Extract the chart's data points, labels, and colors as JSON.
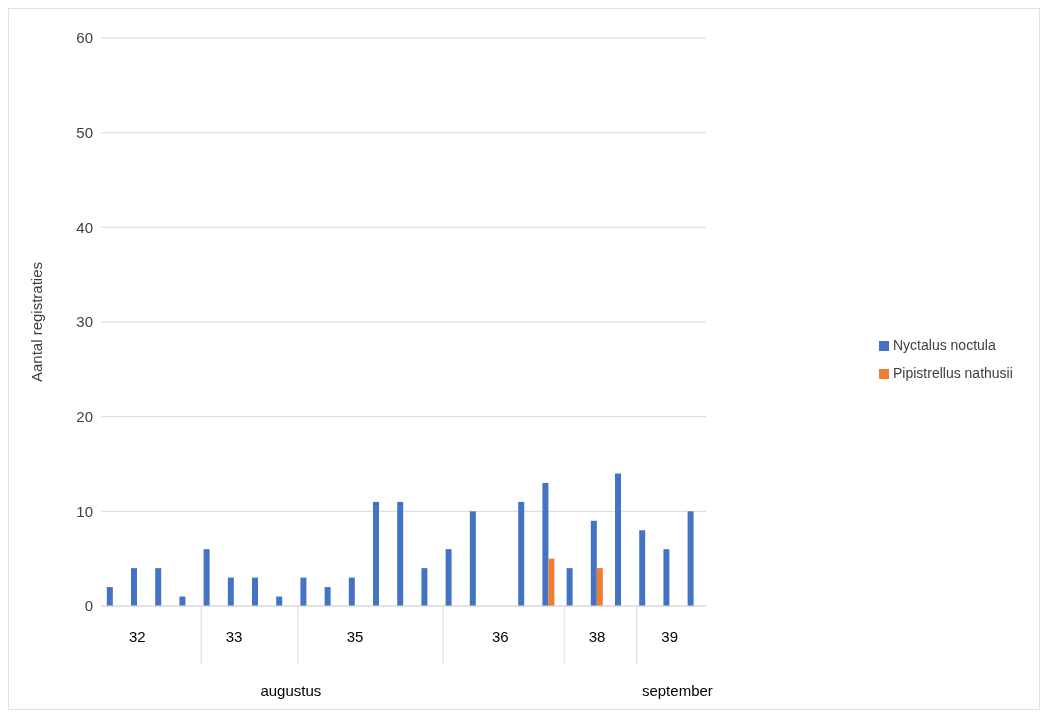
{
  "chart_data": {
    "type": "bar",
    "ylabel": "Aantal registraties",
    "categories": [
      null,
      "32",
      null,
      null,
      null,
      "33",
      null,
      null,
      null,
      null,
      "35",
      null,
      null,
      null,
      null,
      null,
      "36",
      null,
      null,
      null,
      "38",
      null,
      null,
      "39",
      null
    ],
    "series": [
      {
        "name": "Nyctalus noctula",
        "color": "#4472c4",
        "values": [
          2,
          4,
          4,
          1,
          6,
          3,
          3,
          1,
          3,
          2,
          3,
          11,
          11,
          4,
          6,
          10,
          null,
          11,
          13,
          4,
          9,
          14,
          8,
          6,
          10
        ]
      },
      {
        "name": "Pipistrellus nathusii",
        "color": "#ed7d31",
        "values": [
          null,
          null,
          null,
          null,
          null,
          null,
          null,
          null,
          null,
          null,
          null,
          null,
          null,
          null,
          null,
          null,
          null,
          null,
          5,
          null,
          4,
          null,
          null,
          null,
          null
        ]
      }
    ],
    "annotations": [
      "augustus",
      "september"
    ],
    "ylim": [
      0,
      60
    ],
    "yticks": [
      0,
      10,
      20,
      30,
      40,
      50,
      60
    ],
    "grid": "y",
    "legend": "right"
  }
}
